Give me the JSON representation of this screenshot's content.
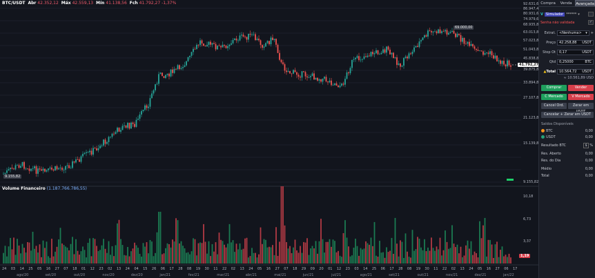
{
  "header": {
    "symbol": "BTC/USDT",
    "abr_label": "Abr",
    "abr_value": "42.352,12",
    "max_label": "Máx",
    "max_value": "42.559,13",
    "min_label": "Mín",
    "min_value": "41.138,56",
    "fch_label": "Fch",
    "fch_value": "41.792,27",
    "change": "-1,37%"
  },
  "price_axis": [
    "92.631,62",
    "86.947,42",
    "80.931,62",
    "74.979,62",
    "68.935,82",
    "63.013,82",
    "57.023,82",
    "51.043,82",
    "45.838,82",
    "39.875,82",
    "33.894,82",
    "27.107,82",
    "21.123,82",
    "15.139,82",
    "9.155,82"
  ],
  "price_badges": {
    "ath": "69.000,00",
    "current": "41.792,27",
    "low": "9.155,82"
  },
  "volume": {
    "title": "Volume Financeiro",
    "value": "(1.187.766.786,55)",
    "axis": [
      "10,18",
      "6,73",
      "3,37"
    ],
    "current_badge": "1,19"
  },
  "x_days": [
    "24",
    "03",
    "14",
    "25",
    "05",
    "16",
    "27",
    "07",
    "18",
    "01",
    "12",
    "23",
    "02",
    "13",
    "24",
    "04",
    "15",
    "26",
    "06",
    "17",
    "28",
    "08",
    "19",
    "30",
    "11",
    "22",
    "02",
    "13",
    "24",
    "05",
    "16",
    "27",
    "07",
    "18",
    "29",
    "09",
    "20",
    "01",
    "12",
    "23",
    "03",
    "14",
    "25",
    "06",
    "17",
    "28",
    "08",
    "19",
    "30",
    "11",
    "22",
    "02",
    "13",
    "24",
    "05",
    "16",
    "27",
    "06",
    "17"
  ],
  "x_months": [
    "ago/20",
    "set/20",
    "out/20",
    "nov/20",
    "dez/20",
    "jan/21",
    "fev/21",
    "mar/21",
    "abr/21",
    "mai/21",
    "jun/21",
    "jul/21",
    "ago/21",
    "set/21",
    "out/21",
    "nov/21",
    "dez/21",
    "jan/22"
  ],
  "panel": {
    "tabs": [
      "Compra",
      "Venda",
      "Avançada"
    ],
    "account": "Simulador",
    "account_mask": "******",
    "password_warning": "Senha não validada",
    "strategy_label": "Estrat.",
    "strategy_value": "<Nenhuma>",
    "price_label": "Preço",
    "price_value": "42.258,88",
    "price_unit": "USDT",
    "stop_label": "Stop Ot",
    "stop_value": "0,17",
    "stop_unit": "USDT",
    "qty_label": "Qtd",
    "qty_value": "0,25000",
    "qty_unit": "BTC",
    "total_label": "Total",
    "total_value": "10.564,72",
    "total_unit": "USDT",
    "total_sub": "≈ 10.561,89 USD",
    "buttons": {
      "buy": "Comprar",
      "sell": "Vender",
      "market_buy": "C Mercado",
      "market_sell": "V Mercado",
      "cancel": "Cancel Ord.",
      "zero": "Zerar em USDT",
      "cancel_zero": "Cancelar + Zerar em USDT"
    },
    "balances_title": "Saldos Disponíveis",
    "balances": [
      {
        "coin": "BTC",
        "value": "0,00",
        "color": "#f7931a"
      },
      {
        "coin": "USDT",
        "value": "0,00",
        "color": "#26a17b"
      }
    ],
    "result_label": "Resultado BTC",
    "result_unit": "%",
    "stats": [
      {
        "label": "Res. Aberto",
        "value": "0,00"
      },
      {
        "label": "Res. do Dia",
        "value": "0,00"
      },
      {
        "label": "Médio",
        "value": "0,00"
      },
      {
        "label": "Total",
        "value": "0,00"
      }
    ]
  },
  "colors": {
    "up": "#26a69a",
    "down": "#ef5350",
    "volume_up": "#1b7a52",
    "volume_down": "#b23a45",
    "accent": "#2962ff"
  }
}
